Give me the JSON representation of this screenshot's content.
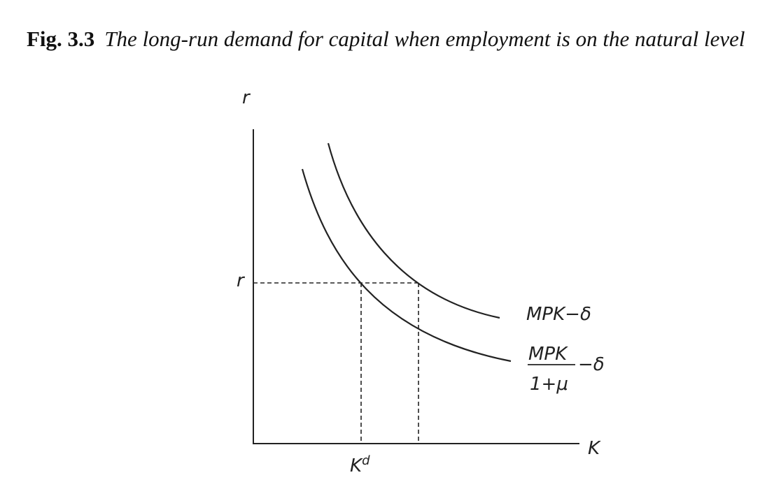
{
  "figure": {
    "number": "Fig. 3.3",
    "caption": "The long-run demand for capital when employment is on the natural level",
    "y_axis_label": "r",
    "x_axis_label": "K",
    "y_marker_label": "r",
    "x_marker_label": {
      "base": "K",
      "superscript": "d"
    },
    "curve_upper_label": "MPK−δ",
    "curve_lower_label": {
      "numerator": "MPK",
      "denominator": "1+μ",
      "suffix": "−δ"
    }
  }
}
